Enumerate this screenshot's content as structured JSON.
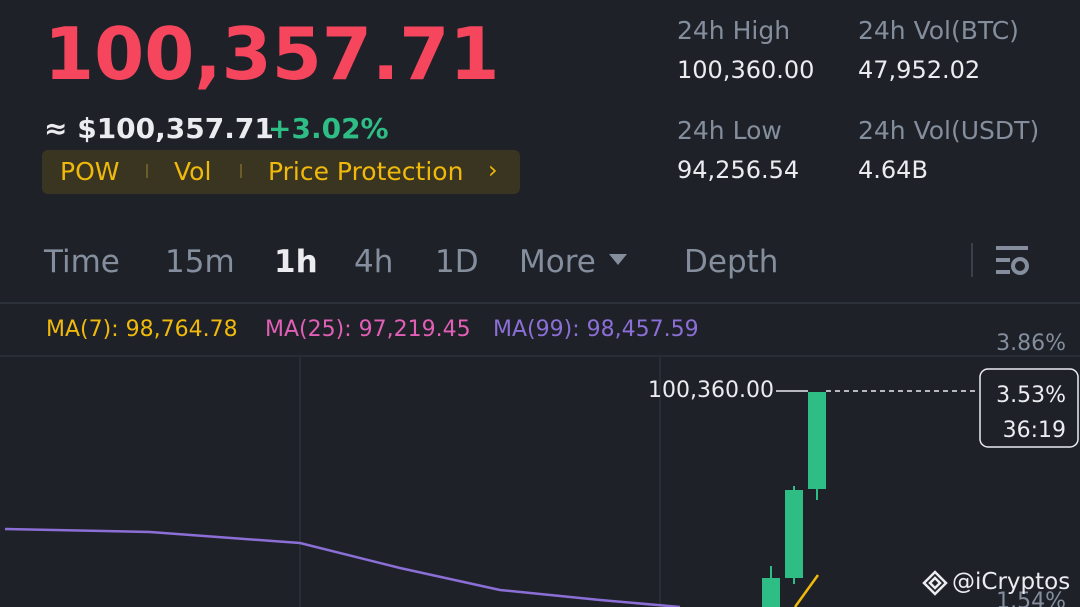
{
  "header": {
    "price": "100,357.71",
    "fiat": "≈ $100,357.71",
    "change": "+3.02%",
    "tags": [
      "POW",
      "Vol",
      "Price Protection"
    ],
    "stats": [
      {
        "label": "24h High",
        "value": "100,360.00"
      },
      {
        "label": "24h Vol(BTC)",
        "value": "47,952.02"
      },
      {
        "label": "24h Low",
        "value": "94,256.54"
      },
      {
        "label": "24h Vol(USDT)",
        "value": "4.64B"
      }
    ]
  },
  "tabs": [
    "Time",
    "15m",
    "1h",
    "4h",
    "1D",
    "More",
    "Depth"
  ],
  "indicators": [
    "MA(7): 98,764.78",
    "MA(25): 97,219.45",
    "MA(99): 98,457.59"
  ],
  "chart": {
    "high_label": "100,360.00",
    "axis_top": "3.86%",
    "current_change": "3.53%",
    "countdown": "36:19",
    "axis_bottom": "1.54%"
  },
  "watermark": "@iCryptos"
}
